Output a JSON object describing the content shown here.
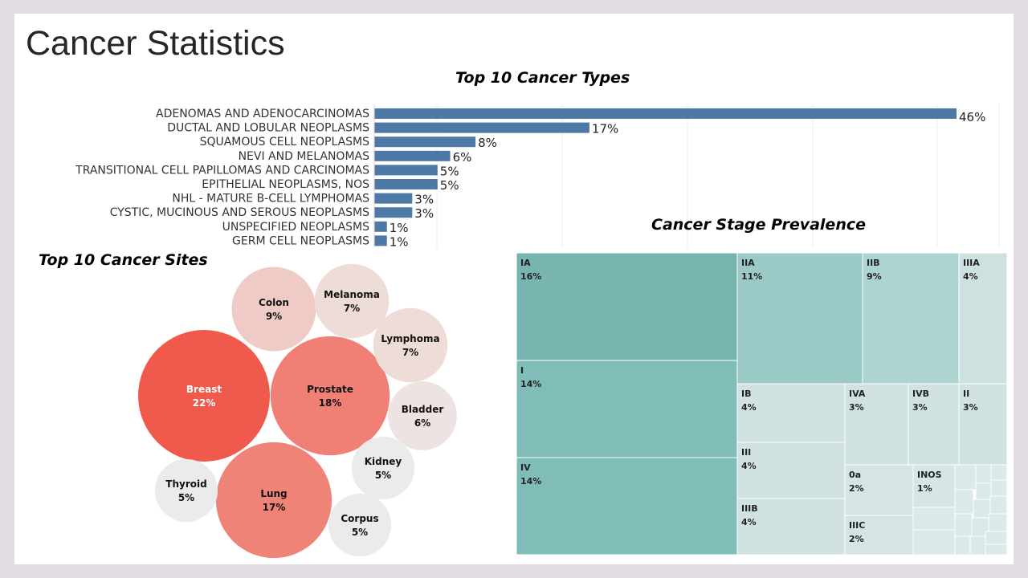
{
  "page": {
    "title": "Cancer Statistics"
  },
  "chart_data": [
    {
      "type": "bar",
      "title": "Top 10 Cancer Types",
      "orientation": "horizontal",
      "grid": true,
      "categories": [
        "ADENOMAS AND ADENOCARCINOMAS",
        "DUCTAL AND LOBULAR NEOPLASMS",
        "SQUAMOUS CELL NEOPLASMS",
        "NEVI AND MELANOMAS",
        "TRANSITIONAL CELL PAPILLOMAS AND CARCINOMAS",
        "EPITHELIAL NEOPLASMS, NOS",
        "NHL - MATURE B-CELL LYMPHOMAS",
        "CYSTIC, MUCINOUS AND SEROUS NEOPLASMS",
        "UNSPECIFIED NEOPLASMS",
        "GERM CELL NEOPLASMS"
      ],
      "values": [
        46,
        17,
        8,
        6,
        5,
        5,
        3,
        3,
        1,
        1
      ],
      "value_labels": [
        "46%",
        "17%",
        "8%",
        "6%",
        "5%",
        "5%",
        "3%",
        "3%",
        "1%",
        "1%"
      ],
      "color": "#4e79a7"
    },
    {
      "type": "bubble",
      "title": "Top 10 Cancer Sites",
      "items": [
        {
          "name": "Breast",
          "value": 22,
          "label": "22%",
          "color": "#ef5a4c",
          "text_color": "#ffffff"
        },
        {
          "name": "Prostate",
          "value": 18,
          "label": "18%",
          "color": "#f08075",
          "text_color": "#111111"
        },
        {
          "name": "Lung",
          "value": 17,
          "label": "17%",
          "color": "#f08377",
          "text_color": "#111111"
        },
        {
          "name": "Colon",
          "value": 9,
          "label": "9%",
          "color": "#efcbc6",
          "text_color": "#111111"
        },
        {
          "name": "Melanoma",
          "value": 7,
          "label": "7%",
          "color": "#eedcd9",
          "text_color": "#111111"
        },
        {
          "name": "Lymphoma",
          "value": 7,
          "label": "7%",
          "color": "#eedcd9",
          "text_color": "#111111"
        },
        {
          "name": "Bladder",
          "value": 6,
          "label": "6%",
          "color": "#ece3e2",
          "text_color": "#111111"
        },
        {
          "name": "Kidney",
          "value": 5,
          "label": "5%",
          "color": "#ebebeb",
          "text_color": "#111111"
        },
        {
          "name": "Corpus",
          "value": 5,
          "label": "5%",
          "color": "#ebebeb",
          "text_color": "#111111"
        },
        {
          "name": "Thyroid",
          "value": 5,
          "label": "5%",
          "color": "#ebebeb",
          "text_color": "#111111"
        }
      ]
    },
    {
      "type": "treemap",
      "title": "Cancer Stage Prevalence",
      "items": [
        {
          "name": "IA",
          "value": 16,
          "label": "16%",
          "color": "#78b5b0"
        },
        {
          "name": "I",
          "value": 14,
          "label": "14%",
          "color": "#81bdb8"
        },
        {
          "name": "IV",
          "value": 14,
          "label": "14%",
          "color": "#81bdb8"
        },
        {
          "name": "IIA",
          "value": 11,
          "label": "11%",
          "color": "#9bc9c5"
        },
        {
          "name": "IIB",
          "value": 9,
          "label": "9%",
          "color": "#aed4d1"
        },
        {
          "name": "IIIA",
          "value": 4,
          "label": "4%",
          "color": "#cde2e0"
        },
        {
          "name": "IB",
          "value": 4,
          "label": "4%",
          "color": "#d0e3e1"
        },
        {
          "name": "IVA",
          "value": 3,
          "label": "3%",
          "color": "#d0e3e1"
        },
        {
          "name": "IVB",
          "value": 3,
          "label": "3%",
          "color": "#d0e3e1"
        },
        {
          "name": "II",
          "value": 3,
          "label": "3%",
          "color": "#d0e3e1"
        },
        {
          "name": "III",
          "value": 4,
          "label": "4%",
          "color": "#d0e3e1"
        },
        {
          "name": "0a",
          "value": 2,
          "label": "2%",
          "color": "#d4e5e3"
        },
        {
          "name": "INOS",
          "value": 1,
          "label": "1%",
          "color": "#d6e6e4"
        },
        {
          "name": "IIIB",
          "value": 4,
          "label": "4%",
          "color": "#d0e3e1"
        },
        {
          "name": "IIIC",
          "value": 2,
          "label": "2%",
          "color": "#d4e5e3"
        }
      ]
    }
  ]
}
